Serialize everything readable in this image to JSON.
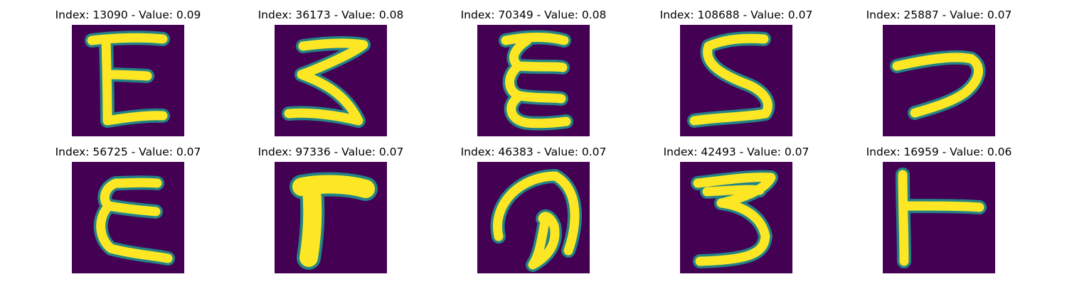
{
  "colors": {
    "background": "#440154",
    "ink": "#fde725",
    "edge": "#21918c"
  },
  "panels": [
    {
      "index": "13090",
      "value": "0.09",
      "title": "Index: 13090 - Value: 0.09",
      "glyph": "E-shape"
    },
    {
      "index": "36173",
      "value": "0.08",
      "title": "Index: 36173 - Value: 0.08",
      "glyph": "zigzag-3"
    },
    {
      "index": "70349",
      "value": "0.08",
      "title": "Index: 70349 - Value: 0.08",
      "glyph": "epsilon"
    },
    {
      "index": "108688",
      "value": "0.07",
      "title": "Index: 108688 - Value: 0.07",
      "glyph": "S-shape"
    },
    {
      "index": "25887",
      "value": "0.07",
      "title": "Index: 25887 - Value: 0.07",
      "glyph": "hook"
    },
    {
      "index": "56725",
      "value": "0.07",
      "title": "Index: 56725 - Value: 0.07",
      "glyph": "epsilon"
    },
    {
      "index": "97336",
      "value": "0.07",
      "title": "Index: 97336 - Value: 0.07",
      "glyph": "thick-7"
    },
    {
      "index": "46383",
      "value": "0.07",
      "title": "Index: 46383 - Value: 0.07",
      "glyph": "at-loop"
    },
    {
      "index": "42493",
      "value": "0.07",
      "title": "Index: 42493 - Value: 0.07",
      "glyph": "3-shape"
    },
    {
      "index": "16959",
      "value": "0.06",
      "title": "Index: 16959 - Value: 0.06",
      "glyph": "T-sideways"
    }
  ]
}
